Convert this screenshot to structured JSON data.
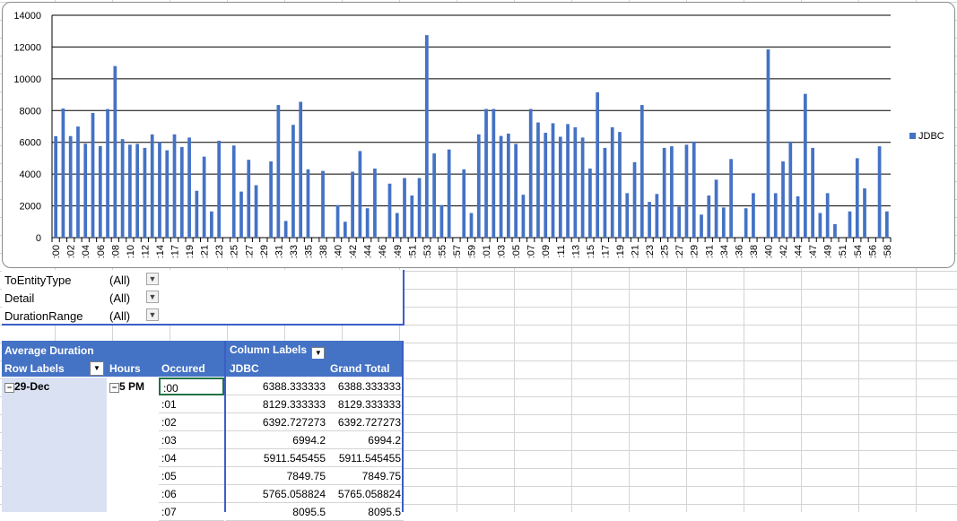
{
  "chart": {
    "legend": "JDBC",
    "y_ticks": [
      "0",
      "2000",
      "4000",
      "6000",
      "8000",
      "10000",
      "12000",
      "14000"
    ],
    "x_labels": [
      ":00",
      ":02",
      ":04",
      ":06",
      ":08",
      ":10",
      ":12",
      ":14",
      ":17",
      ":19",
      ":21",
      ":23",
      ":25",
      ":27",
      ":29",
      ":31",
      ":33",
      ":35",
      ":38",
      ":40",
      ":42",
      ":44",
      ":46",
      ":49",
      ":51",
      ":53",
      ":55",
      ":57",
      ":59",
      ":01",
      ":03",
      ":05",
      ":07",
      ":09",
      ":11",
      ":13",
      ":15",
      ":17",
      ":19",
      ":21",
      ":23",
      ":25",
      ":27",
      ":29",
      ":31",
      ":34",
      ":36",
      ":38",
      ":40",
      ":42",
      ":44",
      ":47",
      ":49",
      ":51",
      ":54",
      ":56",
      ":58"
    ]
  },
  "chart_data": {
    "type": "bar",
    "series": [
      {
        "name": "JDBC",
        "values": [
          6388,
          8129,
          6393,
          6994,
          5912,
          7850,
          5765,
          8096,
          10800,
          6200,
          5850,
          5900,
          5650,
          6500,
          6000,
          5500,
          6500,
          5700,
          6300,
          2950,
          5100,
          1650,
          6100,
          0,
          5800,
          2900,
          4900,
          3300,
          0,
          4800,
          8350,
          1050,
          7100,
          8550,
          4300,
          0,
          4200,
          0,
          2050,
          1000,
          4150,
          5450,
          1850,
          4350,
          0,
          3400,
          1550,
          3750,
          2650,
          3750,
          12750,
          5300,
          2050,
          5550,
          0,
          4300,
          1550,
          6500,
          8100,
          8100,
          6400,
          6550,
          5900,
          2700,
          8100,
          7250,
          6600,
          7200,
          6350,
          7150,
          6950,
          6300,
          4350,
          9150,
          5650,
          6950,
          6650,
          2800,
          4750,
          8350,
          2250,
          2750,
          5650,
          5750,
          1950,
          5850,
          6050,
          1450,
          2650,
          3650,
          1900,
          4950,
          0,
          1850,
          2800,
          0,
          11850,
          2800,
          4800,
          6050,
          2600,
          9050,
          5650,
          1550,
          2800,
          850,
          0,
          1650,
          5000,
          3100,
          0,
          5750,
          1650
        ]
      }
    ],
    "ylim": [
      0,
      14000
    ],
    "legend": "right"
  },
  "filters": [
    {
      "label": "ToEntityType",
      "value": "(All)"
    },
    {
      "label": "Detail",
      "value": "(All)"
    },
    {
      "label": "DurationRange",
      "value": "(All)"
    }
  ],
  "pivot": {
    "values_label": "Average Duration",
    "column_labels": "Column Labels",
    "row_labels": "Row Labels",
    "hours_label": "Hours",
    "occured_label": "Occured",
    "jdbc_label": "JDBC",
    "total_label": "Grand Total",
    "date": "29-Dec",
    "hour": "5 PM",
    "rows": [
      {
        "occured": ":00",
        "jdbc": "6388.333333",
        "total": "6388.333333"
      },
      {
        "occured": ":01",
        "jdbc": "8129.333333",
        "total": "8129.333333"
      },
      {
        "occured": ":02",
        "jdbc": "6392.727273",
        "total": "6392.727273"
      },
      {
        "occured": ":03",
        "jdbc": "6994.2",
        "total": "6994.2"
      },
      {
        "occured": ":04",
        "jdbc": "5911.545455",
        "total": "5911.545455"
      },
      {
        "occured": ":05",
        "jdbc": "7849.75",
        "total": "7849.75"
      },
      {
        "occured": ":06",
        "jdbc": "5765.058824",
        "total": "5765.058824"
      },
      {
        "occured": ":07",
        "jdbc": "8095.5",
        "total": "8095.5"
      }
    ]
  }
}
